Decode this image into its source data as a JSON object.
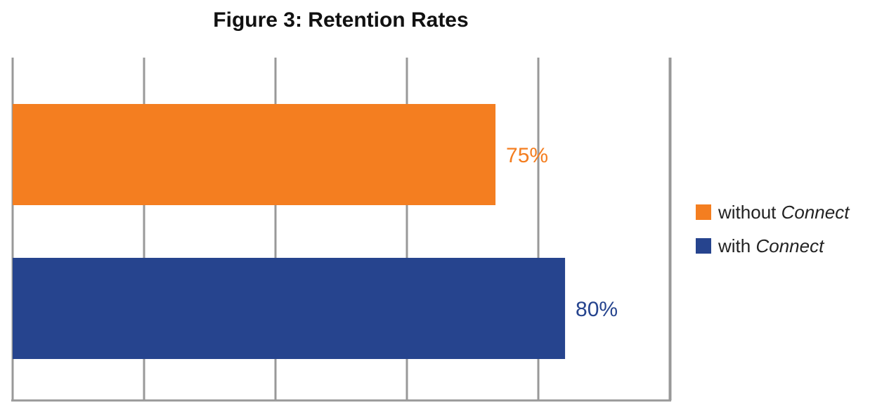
{
  "chart_data": {
    "type": "bar",
    "orientation": "horizontal",
    "title": "Figure 3: Retention Rates",
    "xlabel": "",
    "ylabel": "",
    "xlim": [
      0,
      100
    ],
    "grid": true,
    "legend_position": "right",
    "series": [
      {
        "name": "without Connect",
        "name_parts": [
          "without ",
          "Connect"
        ],
        "value": 75,
        "label": "75%",
        "color": "#F47E20"
      },
      {
        "name": "with Connect",
        "name_parts": [
          "with ",
          "Connect"
        ],
        "value": 80,
        "label": "80%",
        "color": "#26448E"
      }
    ],
    "colors": {
      "grid": "#999999",
      "orange": "#F47E20",
      "navy": "#26448E"
    }
  }
}
